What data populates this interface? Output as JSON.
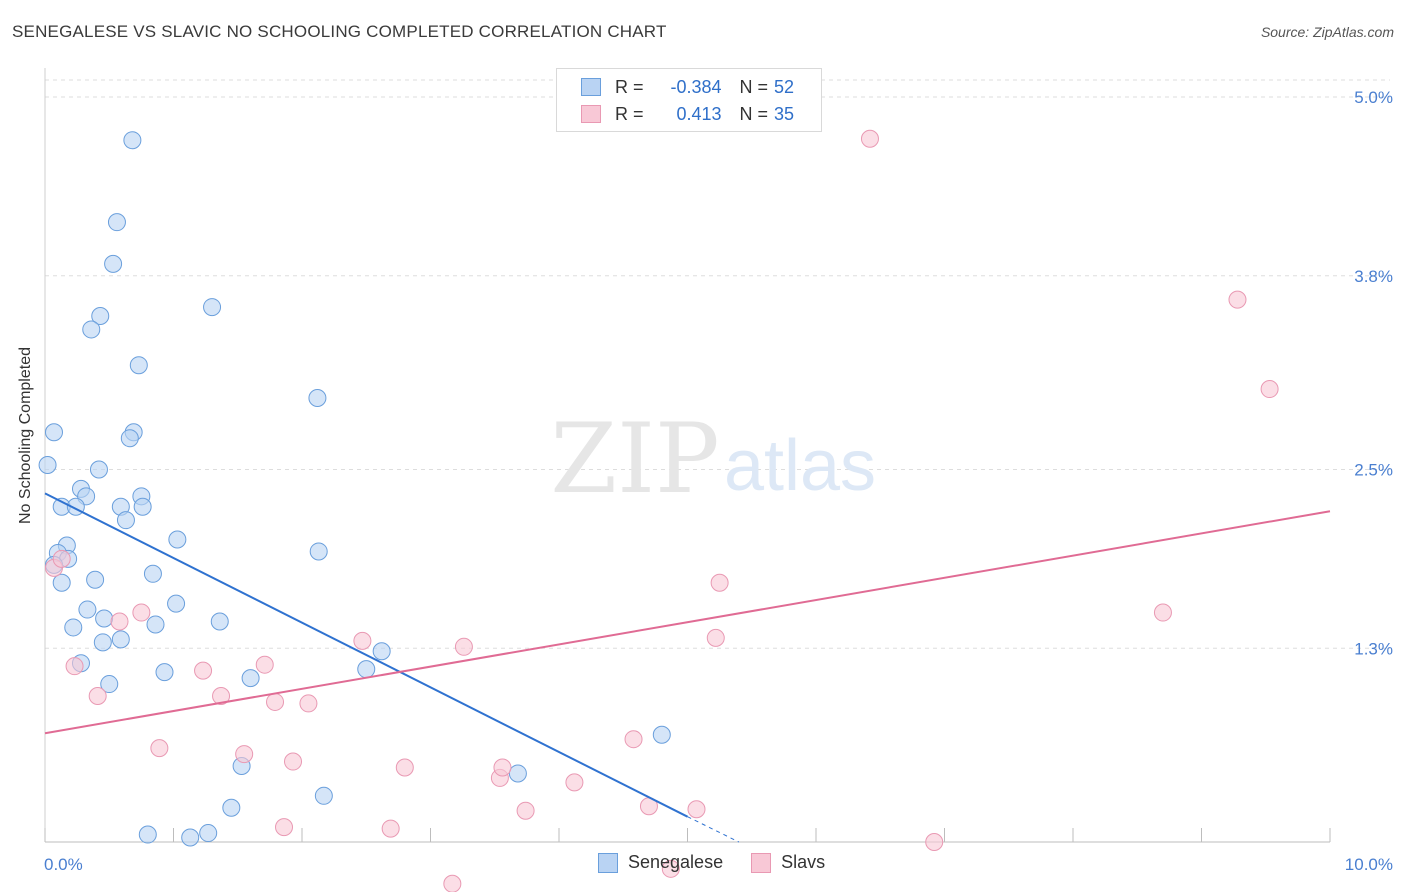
{
  "title": "SENEGALESE VS SLAVIC NO SCHOOLING COMPLETED CORRELATION CHART",
  "source": "Source: ZipAtlas.com",
  "watermark": {
    "zip": "ZIP",
    "atlas": "atlas"
  },
  "legend": {
    "rows": [
      {
        "r_label": "R =",
        "r_value": "-0.384",
        "n_label": "N =",
        "n_value": "52"
      },
      {
        "r_label": "R =",
        "r_value": "0.413",
        "n_label": "N =",
        "n_value": "35"
      }
    ]
  },
  "bottom_legend": {
    "senegalese": "Senegalese",
    "slavs": "Slavs"
  },
  "colors": {
    "senegalese_fill": "#b9d3f3",
    "senegalese_stroke": "#6a9fdc",
    "senegalese_line": "#2f72d0",
    "slavs_fill": "#f8c8d6",
    "slavs_stroke": "#e999b3",
    "slavs_line": "#e06b94",
    "grid": "#dddddd",
    "tick_label": "#4a7fd0"
  },
  "chart_data": {
    "type": "scatter",
    "title": "SENEGALESE VS SLAVIC NO SCHOOLING COMPLETED CORRELATION CHART",
    "xlabel": "",
    "ylabel": "No Schooling Completed",
    "xlim": [
      0,
      10
    ],
    "ylim": [
      0,
      5.2
    ],
    "x_tick_labels": [
      {
        "value": 0,
        "label": "0.0%"
      },
      {
        "value": 10,
        "label": "10.0%"
      }
    ],
    "y_tick_labels": [
      {
        "value": 1.3,
        "label": "1.3%"
      },
      {
        "value": 2.5,
        "label": "2.5%"
      },
      {
        "value": 3.8,
        "label": "3.8%"
      },
      {
        "value": 5.0,
        "label": "5.0%"
      }
    ],
    "series": [
      {
        "name": "Senegalese",
        "r": -0.384,
        "n": 52,
        "trend": {
          "x": [
            0.0,
            5.0
          ],
          "y": [
            2.34,
            0.17
          ],
          "dashed_to": [
            5.4,
            0.0
          ]
        },
        "points": [
          [
            0.68,
            4.71
          ],
          [
            0.56,
            4.16
          ],
          [
            0.53,
            3.88
          ],
          [
            0.43,
            3.53
          ],
          [
            0.36,
            3.44
          ],
          [
            1.3,
            3.59
          ],
          [
            0.73,
            3.2
          ],
          [
            2.12,
            2.98
          ],
          [
            0.07,
            2.75
          ],
          [
            0.69,
            2.75
          ],
          [
            0.66,
            2.71
          ],
          [
            0.02,
            2.53
          ],
          [
            0.42,
            2.5
          ],
          [
            0.28,
            2.37
          ],
          [
            0.32,
            2.32
          ],
          [
            0.75,
            2.32
          ],
          [
            0.13,
            2.25
          ],
          [
            0.24,
            2.25
          ],
          [
            0.76,
            2.25
          ],
          [
            0.59,
            2.25
          ],
          [
            0.63,
            2.16
          ],
          [
            1.03,
            2.03
          ],
          [
            2.13,
            1.95
          ],
          [
            0.17,
            1.99
          ],
          [
            0.1,
            1.94
          ],
          [
            0.18,
            1.9
          ],
          [
            0.07,
            1.86
          ],
          [
            0.84,
            1.8
          ],
          [
            0.39,
            1.76
          ],
          [
            0.13,
            1.74
          ],
          [
            1.02,
            1.6
          ],
          [
            0.33,
            1.56
          ],
          [
            0.46,
            1.5
          ],
          [
            1.36,
            1.48
          ],
          [
            0.86,
            1.46
          ],
          [
            0.22,
            1.44
          ],
          [
            0.59,
            1.36
          ],
          [
            0.45,
            1.34
          ],
          [
            2.62,
            1.28
          ],
          [
            0.28,
            1.2
          ],
          [
            0.93,
            1.14
          ],
          [
            2.5,
            1.16
          ],
          [
            1.6,
            1.1
          ],
          [
            0.5,
            1.06
          ],
          [
            4.8,
            0.72
          ],
          [
            1.53,
            0.51
          ],
          [
            3.68,
            0.46
          ],
          [
            2.17,
            0.31
          ],
          [
            1.45,
            0.23
          ],
          [
            0.8,
            0.05
          ],
          [
            1.13,
            0.03
          ],
          [
            1.27,
            0.06
          ]
        ]
      },
      {
        "name": "Slavs",
        "r": 0.413,
        "n": 35,
        "trend": {
          "x": [
            0.0,
            10.0
          ],
          "y": [
            0.73,
            2.22
          ]
        },
        "points": [
          [
            6.42,
            4.72
          ],
          [
            9.28,
            3.64
          ],
          [
            9.53,
            3.04
          ],
          [
            0.07,
            1.84
          ],
          [
            0.13,
            1.9
          ],
          [
            5.25,
            1.74
          ],
          [
            8.7,
            1.54
          ],
          [
            0.75,
            1.54
          ],
          [
            0.58,
            1.48
          ],
          [
            2.47,
            1.35
          ],
          [
            3.26,
            1.31
          ],
          [
            5.22,
            1.37
          ],
          [
            0.23,
            1.18
          ],
          [
            1.23,
            1.15
          ],
          [
            1.71,
            1.19
          ],
          [
            0.41,
            0.98
          ],
          [
            1.37,
            0.98
          ],
          [
            1.79,
            0.94
          ],
          [
            2.05,
            0.93
          ],
          [
            4.58,
            0.69
          ],
          [
            0.89,
            0.63
          ],
          [
            1.55,
            0.59
          ],
          [
            1.93,
            0.54
          ],
          [
            2.8,
            0.5
          ],
          [
            3.54,
            0.43
          ],
          [
            4.12,
            0.4
          ],
          [
            4.7,
            0.24
          ],
          [
            2.69,
            0.09
          ],
          [
            3.56,
            0.5
          ],
          [
            3.74,
            0.21
          ],
          [
            1.86,
            0.1
          ],
          [
            5.07,
            0.22
          ],
          [
            3.17,
            -0.28
          ],
          [
            4.87,
            -0.18
          ],
          [
            6.92,
            0.0
          ]
        ]
      }
    ]
  }
}
